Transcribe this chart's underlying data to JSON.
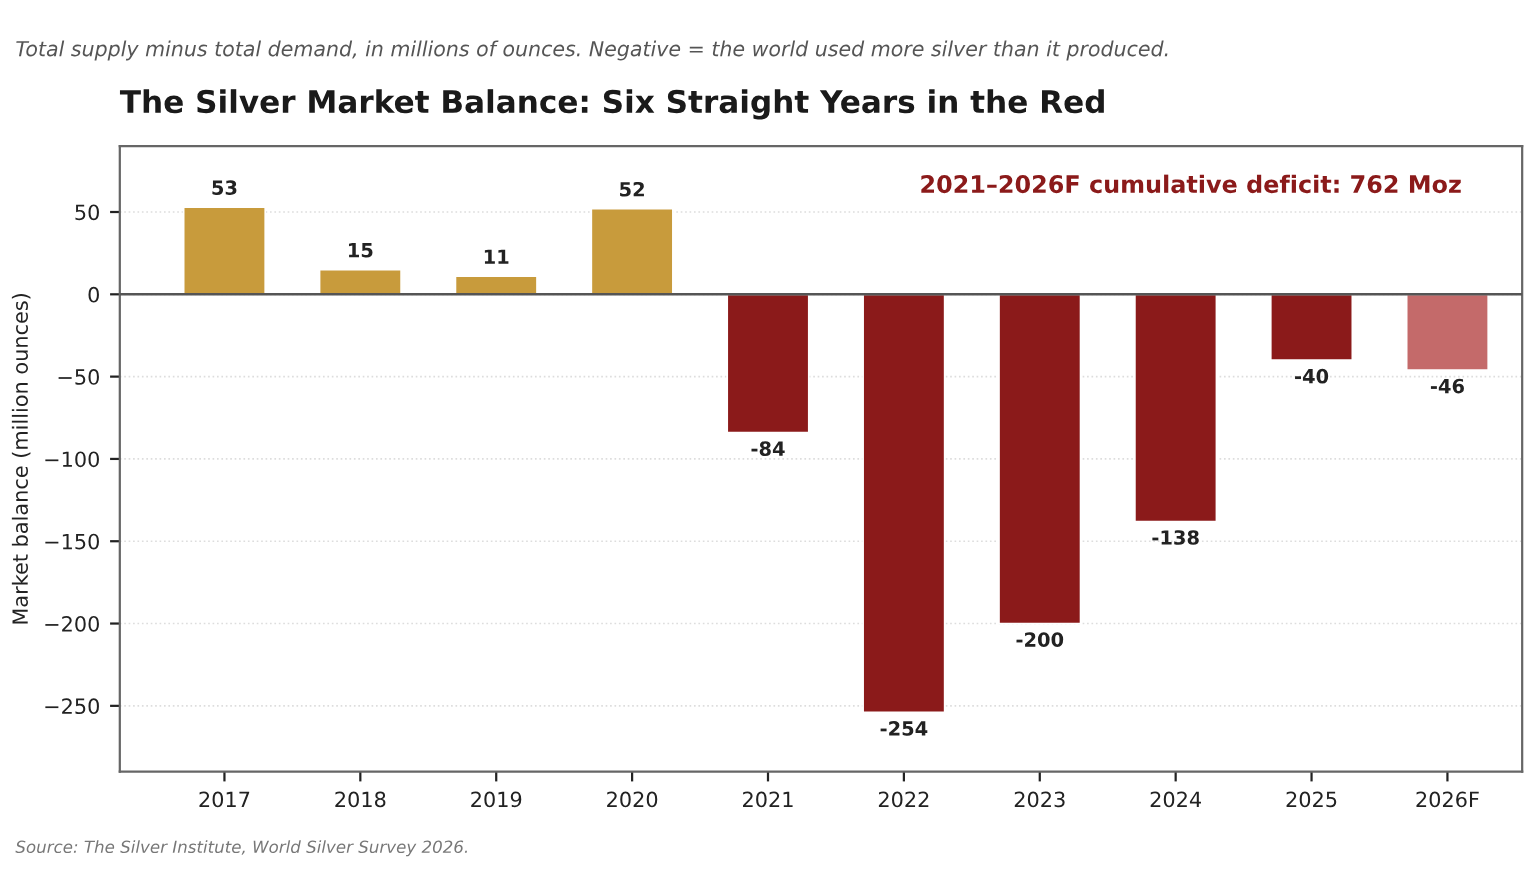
{
  "chart_data": {
    "type": "bar",
    "title": "The Silver Market Balance: Six Straight Years in the Red",
    "subtitle": "Total supply minus total demand, in millions of ounces. Negative = the world used more silver than it produced.",
    "ylabel": "Market balance (million ounces)",
    "categories": [
      "2017",
      "2018",
      "2019",
      "2020",
      "2021",
      "2022",
      "2023",
      "2024",
      "2025",
      "2026F"
    ],
    "values": [
      53,
      15,
      11,
      52,
      -84,
      -254,
      -200,
      -138,
      -40,
      -46
    ],
    "colors": [
      "#c89b3c",
      "#c89b3c",
      "#c89b3c",
      "#c89b3c",
      "#8b1a1a",
      "#8b1a1a",
      "#8b1a1a",
      "#8b1a1a",
      "#8b1a1a",
      "#c46a6a"
    ],
    "ylim": [
      -290,
      90
    ],
    "yticks": [
      {
        "value": -250,
        "label": "−250"
      },
      {
        "value": -200,
        "label": "−200"
      },
      {
        "value": -150,
        "label": "−150"
      },
      {
        "value": -100,
        "label": "−100"
      },
      {
        "value": -50,
        "label": "−50"
      },
      0,
      50
    ],
    "grid": "y",
    "data_labels": true,
    "ref_lines": [
      {
        "axis": "y",
        "value": 0,
        "color": "#555555"
      }
    ],
    "annotations": [
      "2021–2026F cumulative deficit: 762 Moz",
      "Source: The Silver Institute, World Silver Survey 2026."
    ]
  }
}
